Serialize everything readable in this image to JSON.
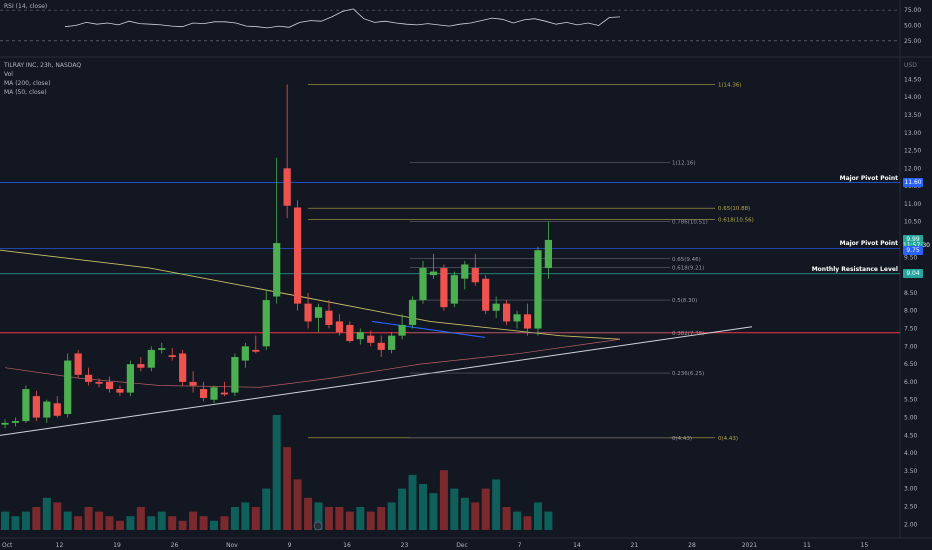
{
  "header": {
    "symbol": "TILRAY INC, 23h, NASDAQ",
    "legend": [
      "Vol",
      "MA (200, close)",
      "MA (50, close)"
    ],
    "rsi_label": "RSI (14, close)",
    "currency": "USD"
  },
  "price_tags": [
    {
      "value": "11.60",
      "color": "#2962ff",
      "price": 11.6
    },
    {
      "value": "9.99",
      "color": "#26a69a",
      "price": 9.99
    },
    {
      "value": "11:57:30",
      "color": "#26a69a",
      "price": 9.84
    },
    {
      "value": "9.75",
      "color": "#2962ff",
      "price": 9.7
    },
    {
      "value": "9.04",
      "color": "#26a69a",
      "price": 9.04
    }
  ],
  "resistance_labels": [
    {
      "text": "Major Pivot Point",
      "price": 11.6
    },
    {
      "text": "Major Pivot Point",
      "price": 9.75
    },
    {
      "text": "Monthly Resistance Level",
      "price": 9.04
    }
  ],
  "chart_data": {
    "type": "candlestick",
    "x_tick_labels": [
      "Oct",
      "12",
      "19",
      "26",
      "Nov",
      "9",
      "16",
      "23",
      "Dec",
      "7",
      "14",
      "21",
      "28",
      "2021",
      "11",
      "15"
    ],
    "y_ticks": [
      2.0,
      2.5,
      3.0,
      3.5,
      4.0,
      4.5,
      5.0,
      5.5,
      6.0,
      6.5,
      7.0,
      7.5,
      8.0,
      8.5,
      9.0,
      9.5,
      10.0,
      10.5,
      11.0,
      11.5,
      12.0,
      12.5,
      13.0,
      13.5,
      14.0,
      14.5
    ],
    "ylim": [
      1.7,
      15.1
    ],
    "rsi_ticks": [
      25.0,
      50.0,
      75.0
    ],
    "candles": [
      {
        "o": 4.8,
        "h": 4.95,
        "l": 4.7,
        "c": 4.85
      },
      {
        "o": 4.85,
        "h": 5.0,
        "l": 4.75,
        "c": 4.9
      },
      {
        "o": 4.9,
        "h": 5.9,
        "l": 4.85,
        "c": 5.8
      },
      {
        "o": 5.6,
        "h": 5.75,
        "l": 4.9,
        "c": 5.0
      },
      {
        "o": 5.0,
        "h": 5.5,
        "l": 4.85,
        "c": 5.45
      },
      {
        "o": 5.4,
        "h": 5.6,
        "l": 5.0,
        "c": 5.05
      },
      {
        "o": 5.1,
        "h": 6.8,
        "l": 5.0,
        "c": 6.6
      },
      {
        "o": 6.8,
        "h": 6.9,
        "l": 6.1,
        "c": 6.2
      },
      {
        "o": 6.2,
        "h": 6.4,
        "l": 5.9,
        "c": 6.0
      },
      {
        "o": 6.0,
        "h": 6.1,
        "l": 5.85,
        "c": 5.95
      },
      {
        "o": 6.0,
        "h": 6.15,
        "l": 5.7,
        "c": 5.8
      },
      {
        "o": 5.8,
        "h": 5.9,
        "l": 5.6,
        "c": 5.7
      },
      {
        "o": 5.7,
        "h": 6.6,
        "l": 5.6,
        "c": 6.5
      },
      {
        "o": 6.5,
        "h": 6.7,
        "l": 6.3,
        "c": 6.4
      },
      {
        "o": 6.4,
        "h": 7.0,
        "l": 6.3,
        "c": 6.9
      },
      {
        "o": 6.9,
        "h": 7.1,
        "l": 6.8,
        "c": 6.95
      },
      {
        "o": 6.75,
        "h": 6.95,
        "l": 6.6,
        "c": 6.7
      },
      {
        "o": 6.8,
        "h": 6.9,
        "l": 5.9,
        "c": 6.0
      },
      {
        "o": 6.0,
        "h": 6.3,
        "l": 5.7,
        "c": 5.9
      },
      {
        "o": 5.8,
        "h": 6.0,
        "l": 5.45,
        "c": 5.55
      },
      {
        "o": 5.5,
        "h": 5.9,
        "l": 5.4,
        "c": 5.85
      },
      {
        "o": 5.7,
        "h": 6.0,
        "l": 5.6,
        "c": 5.65
      },
      {
        "o": 5.7,
        "h": 6.8,
        "l": 5.6,
        "c": 6.7
      },
      {
        "o": 6.6,
        "h": 7.1,
        "l": 6.4,
        "c": 7.0
      },
      {
        "o": 6.9,
        "h": 7.3,
        "l": 6.8,
        "c": 6.85
      },
      {
        "o": 7.0,
        "h": 8.6,
        "l": 6.9,
        "c": 8.3
      },
      {
        "o": 8.4,
        "h": 12.3,
        "l": 8.2,
        "c": 9.9
      },
      {
        "o": 12.0,
        "h": 14.36,
        "l": 10.6,
        "c": 10.95
      },
      {
        "o": 10.9,
        "h": 11.1,
        "l": 8.0,
        "c": 8.2
      },
      {
        "o": 8.2,
        "h": 8.5,
        "l": 7.5,
        "c": 7.7
      },
      {
        "o": 7.8,
        "h": 8.2,
        "l": 7.4,
        "c": 8.1
      },
      {
        "o": 8.0,
        "h": 8.3,
        "l": 7.5,
        "c": 7.6
      },
      {
        "o": 7.7,
        "h": 7.9,
        "l": 7.3,
        "c": 7.4
      },
      {
        "o": 7.6,
        "h": 7.7,
        "l": 7.1,
        "c": 7.15
      },
      {
        "o": 7.2,
        "h": 7.5,
        "l": 7.05,
        "c": 7.4
      },
      {
        "o": 7.3,
        "h": 7.45,
        "l": 7.0,
        "c": 7.1
      },
      {
        "o": 7.1,
        "h": 7.3,
        "l": 6.7,
        "c": 6.9
      },
      {
        "o": 6.9,
        "h": 7.4,
        "l": 6.8,
        "c": 7.3
      },
      {
        "o": 7.3,
        "h": 7.9,
        "l": 7.2,
        "c": 7.6
      },
      {
        "o": 7.6,
        "h": 8.4,
        "l": 7.5,
        "c": 8.3
      },
      {
        "o": 8.3,
        "h": 9.4,
        "l": 8.2,
        "c": 9.2
      },
      {
        "o": 9.0,
        "h": 9.6,
        "l": 8.9,
        "c": 9.1
      },
      {
        "o": 9.2,
        "h": 9.3,
        "l": 8.0,
        "c": 8.1
      },
      {
        "o": 8.2,
        "h": 9.1,
        "l": 8.1,
        "c": 9.0
      },
      {
        "o": 8.9,
        "h": 9.4,
        "l": 8.6,
        "c": 9.3
      },
      {
        "o": 9.2,
        "h": 9.6,
        "l": 8.7,
        "c": 8.8
      },
      {
        "o": 8.9,
        "h": 9.0,
        "l": 7.9,
        "c": 8.0
      },
      {
        "o": 8.0,
        "h": 8.4,
        "l": 7.8,
        "c": 8.2
      },
      {
        "o": 8.2,
        "h": 8.3,
        "l": 7.6,
        "c": 7.7
      },
      {
        "o": 7.7,
        "h": 8.0,
        "l": 7.5,
        "c": 7.9
      },
      {
        "o": 7.9,
        "h": 8.2,
        "l": 7.3,
        "c": 7.5
      },
      {
        "o": 7.5,
        "h": 9.8,
        "l": 7.3,
        "c": 9.7
      },
      {
        "o": 9.2,
        "h": 10.5,
        "l": 8.9,
        "c": 9.99
      }
    ],
    "volume": [
      0.4,
      0.3,
      0.4,
      0.5,
      0.7,
      0.6,
      0.4,
      0.3,
      0.5,
      0.4,
      0.3,
      0.2,
      0.3,
      0.5,
      0.3,
      0.4,
      0.3,
      0.2,
      0.4,
      0.3,
      0.2,
      0.3,
      0.5,
      0.6,
      0.5,
      0.9,
      2.5,
      1.8,
      1.1,
      0.7,
      0.6,
      0.5,
      0.5,
      0.4,
      0.5,
      0.4,
      0.5,
      0.6,
      0.9,
      1.2,
      1.0,
      0.8,
      1.3,
      0.9,
      0.7,
      0.6,
      0.9,
      1.1,
      0.5,
      0.4,
      0.3,
      0.6,
      0.4
    ],
    "rsi": [
      48,
      50,
      55,
      52,
      54,
      51,
      57,
      53,
      52,
      51,
      49,
      48,
      54,
      53,
      56,
      56,
      54,
      49,
      48,
      46,
      49,
      47,
      55,
      58,
      57,
      64,
      73,
      77,
      61,
      55,
      57,
      54,
      52,
      51,
      53,
      51,
      49,
      52,
      54,
      58,
      62,
      60,
      54,
      59,
      61,
      57,
      52,
      55,
      51,
      54,
      50,
      63,
      64
    ],
    "fib_right": [
      {
        "label": "1(14.36)",
        "price": 14.36
      },
      {
        "label": "0.65(10.88)",
        "price": 10.88
      },
      {
        "label": "0.618(10.56)",
        "price": 10.56
      },
      {
        "label": "0(4.43)",
        "price": 4.43
      }
    ],
    "fib_mid": [
      {
        "label": "1(12.16)",
        "price": 12.16
      },
      {
        "label": "0.786(10.51)",
        "price": 10.51
      },
      {
        "label": "0.65(9.46)",
        "price": 9.46
      },
      {
        "label": "0.618(9.21)",
        "price": 9.21
      },
      {
        "label": "0.5(8.30)",
        "price": 8.3
      },
      {
        "label": "0.382(7.38)",
        "price": 7.38
      },
      {
        "label": "0.236(6.25)",
        "price": 6.25
      },
      {
        "label": "0(4.43)",
        "price": 4.43
      }
    ],
    "horizontal_levels": [
      {
        "price": 11.6,
        "color": "#2962ff"
      },
      {
        "price": 9.75,
        "color": "#2962ff"
      },
      {
        "price": 9.04,
        "color": "#26a69a"
      },
      {
        "price": 7.38,
        "color": "#f23645"
      }
    ],
    "colors": {
      "up": "#26a69a",
      "up_body": "#4caf50",
      "down": "#ef5350",
      "vol_up": "#0f5f5a",
      "vol_down": "#7a2a2d",
      "fib": "#b5a847"
    }
  }
}
